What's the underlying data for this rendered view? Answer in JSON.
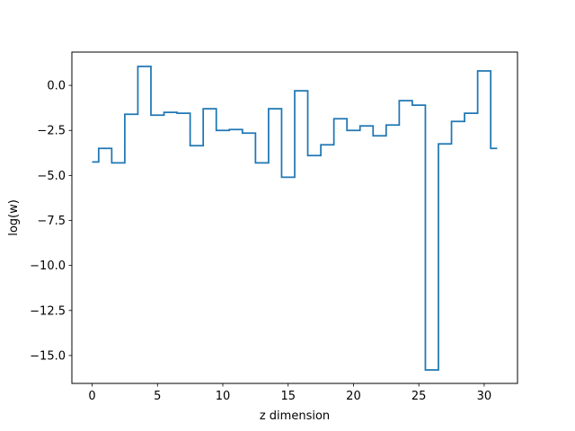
{
  "chart_data": {
    "type": "line",
    "drawstyle": "steps-mid",
    "title": "",
    "xlabel": "z dimension",
    "ylabel": "log(w)",
    "xlim": [
      -1.55,
      32.55
    ],
    "ylim": [
      -16.55,
      1.85
    ],
    "xticks": [
      0,
      5,
      10,
      15,
      20,
      25,
      30
    ],
    "xtick_labels": [
      "0",
      "5",
      "10",
      "15",
      "20",
      "25",
      "30"
    ],
    "yticks": [
      0.0,
      -2.5,
      -5.0,
      -7.5,
      -10.0,
      -12.5,
      -15.0
    ],
    "ytick_labels": [
      "0.0",
      "−2.5",
      "−5.0",
      "−7.5",
      "−10.0",
      "−12.5",
      "−15.0"
    ],
    "grid": false,
    "legend": "none",
    "series": [
      {
        "color": "#1f77b4",
        "x": [
          0,
          1,
          2,
          3,
          4,
          5,
          6,
          7,
          8,
          9,
          10,
          11,
          12,
          13,
          14,
          15,
          16,
          17,
          18,
          19,
          20,
          21,
          22,
          23,
          24,
          25,
          26,
          27,
          28,
          29,
          30,
          31
        ],
        "values": [
          -4.25,
          -3.5,
          -4.3,
          -1.6,
          1.05,
          -1.65,
          -1.5,
          -1.55,
          -3.35,
          -1.3,
          -2.5,
          -2.45,
          -2.65,
          -4.3,
          -1.3,
          -5.1,
          -0.3,
          -3.9,
          -3.3,
          -1.85,
          -2.5,
          -2.25,
          -2.8,
          -2.2,
          -0.85,
          -1.1,
          -15.8,
          -3.25,
          -2.0,
          -1.55,
          0.8,
          -3.5
        ]
      }
    ]
  }
}
